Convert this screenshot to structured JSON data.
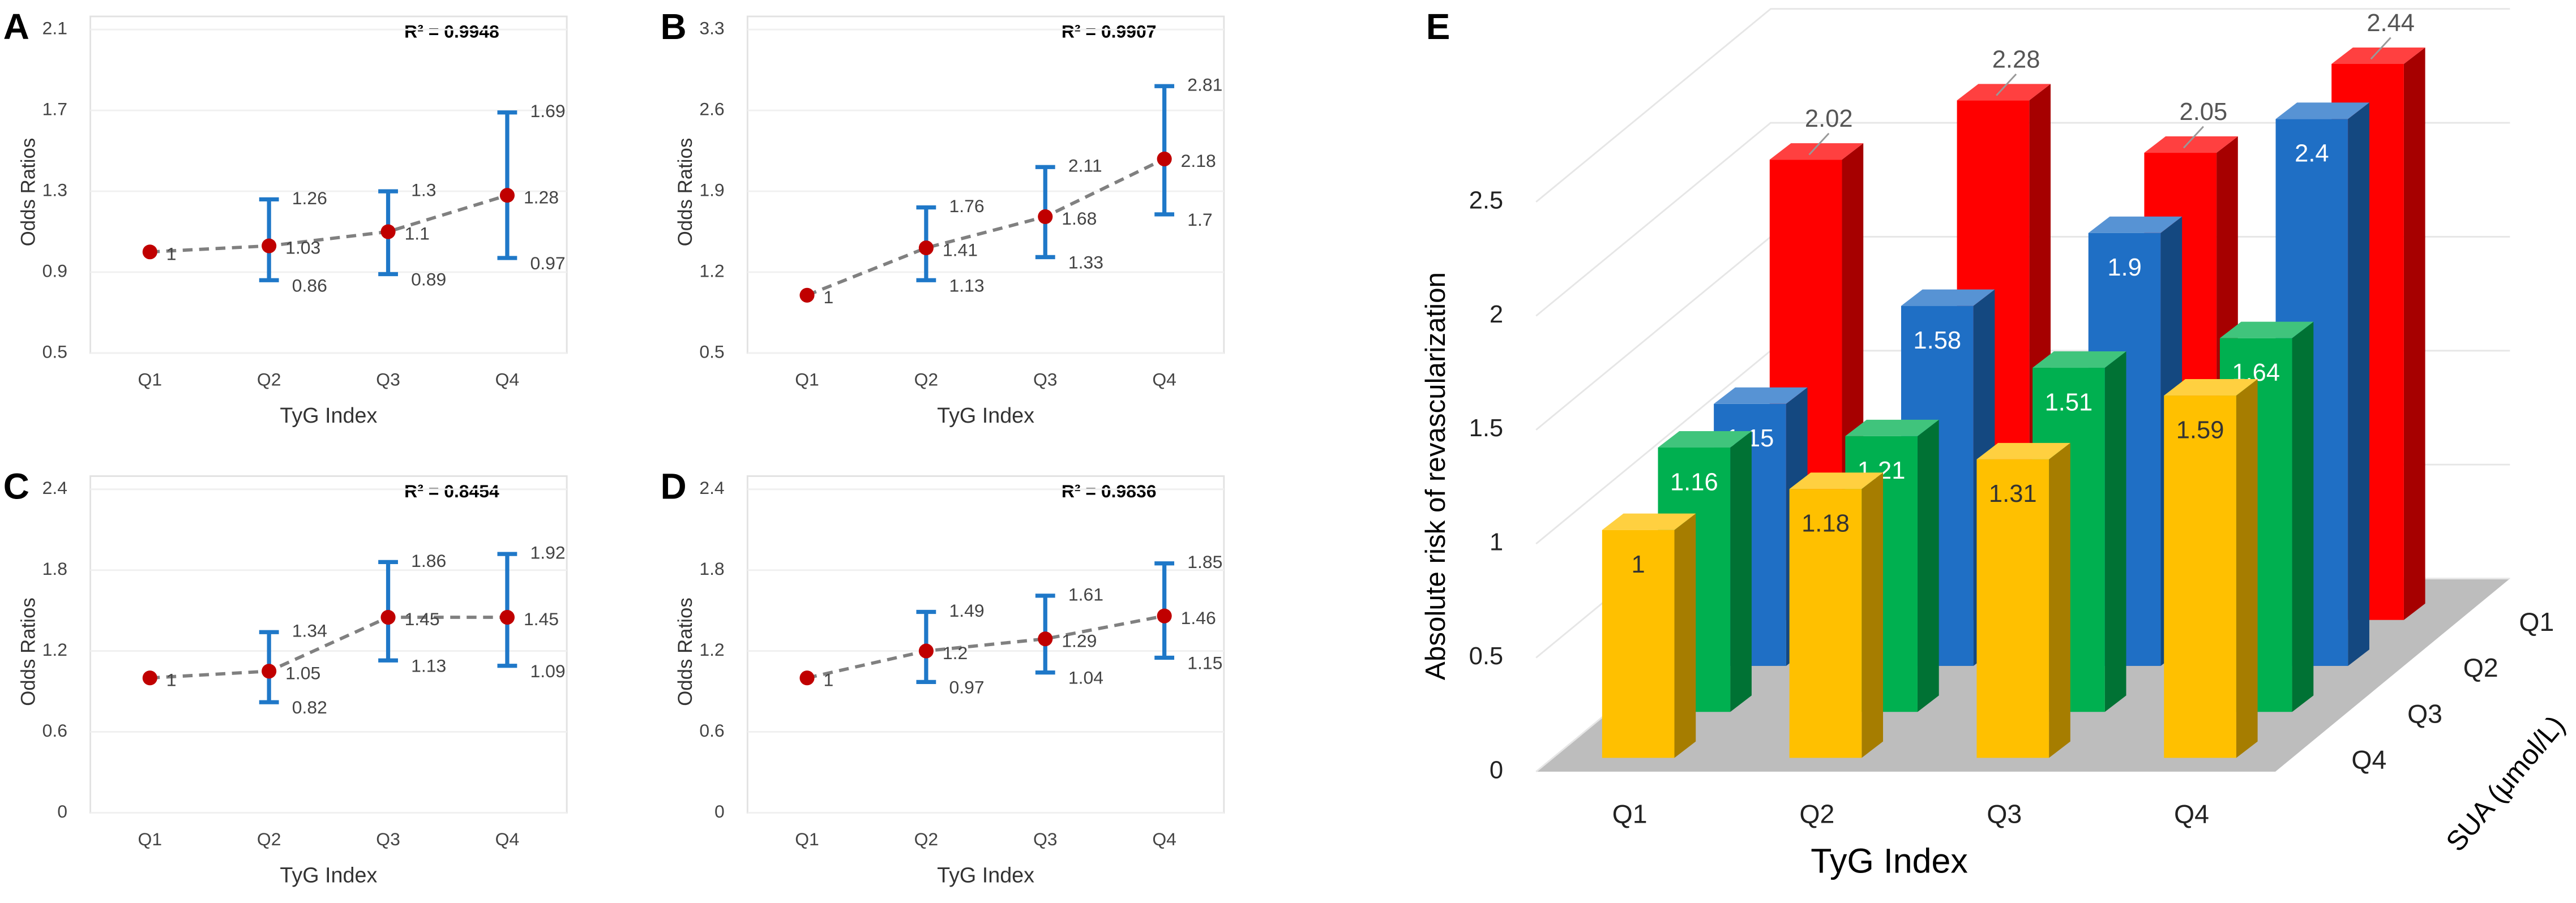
{
  "chart_data": [
    {
      "type": "errorbar",
      "title": "A",
      "annotation": "R² = 0.9948",
      "x_label": "TyG Index",
      "y_label": "Odds Ratios",
      "categories": [
        "Q1",
        "Q2",
        "Q3",
        "Q4"
      ],
      "values": [
        1,
        1.03,
        1.1,
        1.28
      ],
      "lower": [
        null,
        0.86,
        0.89,
        0.97
      ],
      "upper": [
        null,
        1.26,
        1.3,
        1.69
      ],
      "ylim": [
        0.5,
        2.1
      ],
      "yticks": [
        0.5,
        0.9,
        1.3,
        1.7,
        2.1
      ],
      "point_color": "#c00000",
      "bar_color": "#1f78c8",
      "line_color": "#808080",
      "grid": true
    },
    {
      "type": "errorbar",
      "title": "B",
      "annotation": "R² = 0.9907",
      "x_label": "TyG Index",
      "y_label": "Odds Ratios",
      "categories": [
        "Q1",
        "Q2",
        "Q3",
        "Q4"
      ],
      "values": [
        1,
        1.41,
        1.68,
        2.18
      ],
      "lower": [
        null,
        1.13,
        1.33,
        1.7
      ],
      "upper": [
        null,
        1.76,
        2.11,
        2.81
      ],
      "ylim": [
        0.5,
        3.3
      ],
      "yticks": [
        0.5,
        1.2,
        1.9,
        2.6,
        3.3
      ],
      "point_color": "#c00000",
      "bar_color": "#1f78c8",
      "line_color": "#808080",
      "grid": true
    },
    {
      "type": "errorbar",
      "title": "C",
      "annotation": "R² = 0.8454",
      "x_label": "TyG Index",
      "y_label": "Odds Ratios",
      "categories": [
        "Q1",
        "Q2",
        "Q3",
        "Q4"
      ],
      "values": [
        1,
        1.05,
        1.45,
        1.45
      ],
      "lower": [
        null,
        0.82,
        1.13,
        1.09
      ],
      "upper": [
        null,
        1.34,
        1.86,
        1.92
      ],
      "ylim": [
        0,
        2.4
      ],
      "yticks": [
        0,
        0.6,
        1.2,
        1.8,
        2.4
      ],
      "point_color": "#c00000",
      "bar_color": "#1f78c8",
      "line_color": "#808080",
      "grid": true
    },
    {
      "type": "errorbar",
      "title": "D",
      "annotation": "R² = 0.9836",
      "x_label": "TyG Index",
      "y_label": "Odds Ratios",
      "categories": [
        "Q1",
        "Q2",
        "Q3",
        "Q4"
      ],
      "values": [
        1,
        1.2,
        1.29,
        1.46
      ],
      "lower": [
        null,
        0.97,
        1.04,
        1.15
      ],
      "upper": [
        null,
        1.49,
        1.61,
        1.85
      ],
      "ylim": [
        0,
        2.4
      ],
      "yticks": [
        0,
        0.6,
        1.2,
        1.8,
        2.4
      ],
      "point_color": "#c00000",
      "bar_color": "#1f78c8",
      "line_color": "#808080",
      "grid": true
    },
    {
      "type": "bar3d",
      "title": "E",
      "x_label": "TyG Index",
      "y_label": "Absolute risk of revascularization",
      "legend_title": "SUA (μmol/L)",
      "categories": [
        "Q1",
        "Q2",
        "Q3",
        "Q4"
      ],
      "series": [
        {
          "name": "Q1",
          "color": "#ff0000",
          "values": [
            2.02,
            2.28,
            2.05,
            2.44
          ]
        },
        {
          "name": "Q2",
          "color": "#1f6fc5",
          "values": [
            1.15,
            1.58,
            1.9,
            2.4
          ]
        },
        {
          "name": "Q3",
          "color": "#00b050",
          "values": [
            1.16,
            1.21,
            1.51,
            1.64
          ]
        },
        {
          "name": "Q4",
          "color": "#ffc000",
          "values": [
            1,
            1.18,
            1.31,
            1.59
          ]
        }
      ],
      "ylim": [
        0,
        2.5
      ],
      "yticks": [
        0,
        0.5,
        1,
        1.5,
        2,
        2.5
      ],
      "grid": true
    }
  ]
}
